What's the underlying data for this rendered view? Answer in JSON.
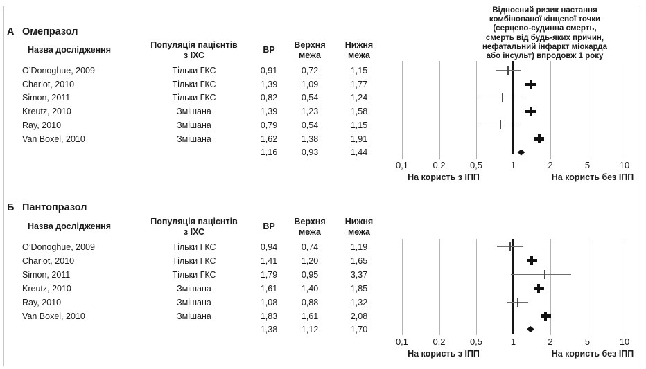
{
  "figure": {
    "plot_title": "Відносний ризик настання\nкомбінованої кінцевої точки\n(серцево-судинна смерть,\nсмерть від будь-яких причин,\nнефатальний інфаркт міокарда\nабо інсульт) впродовж 1 року",
    "axis_ticks": [
      "0,1",
      "0,2",
      "0,5",
      "1",
      "2",
      "5",
      "10"
    ],
    "favors_left": "На користь з ІПП",
    "favors_right": "На користь без ІПП"
  },
  "table_headers": {
    "study": "Назва дослідження",
    "population": "Популяція пацієнтів\nз ІХС",
    "rr": "ВР",
    "upper": "Верхня\nмежа",
    "lower": "Нижня\nмежа"
  },
  "panels": [
    {
      "letter": "А",
      "title": "Омепразол",
      "rows": [
        {
          "study": "O’Donoghue, 2009",
          "population": "Тільки ГКС",
          "rr": "0,91",
          "upper": "0,72",
          "lower": "1,15"
        },
        {
          "study": "Charlot, 2010",
          "population": "Тільки ГКС",
          "rr": "1,39",
          "upper": "1,09",
          "lower": "1,77"
        },
        {
          "study": "Simon, 2011",
          "population": "Тільки ГКС",
          "rr": "0,82",
          "upper": "0,54",
          "lower": "1,24"
        },
        {
          "study": "Kreutz, 2010",
          "population": "Змішана",
          "rr": "1,39",
          "upper": "1,23",
          "lower": "1,58"
        },
        {
          "study": "Ray, 2010",
          "population": "Змішана",
          "rr": "0,79",
          "upper": "0,54",
          "lower": "1,15"
        },
        {
          "study": "Van Boxel, 2010",
          "population": "Змішана",
          "rr": "1,62",
          "upper": "1,38",
          "lower": "1,91"
        }
      ],
      "summary": {
        "rr": "1,16",
        "upper": "0,93",
        "lower": "1,44"
      }
    },
    {
      "letter": "Б",
      "title": "Пантопразол",
      "rows": [
        {
          "study": "O’Donoghue, 2009",
          "population": "Тільки ГКС",
          "rr": "0,94",
          "upper": "0,74",
          "lower": "1,19"
        },
        {
          "study": "Charlot, 2010",
          "population": "Тільки ГКС",
          "rr": "1,41",
          "upper": "1,20",
          "lower": "1,65"
        },
        {
          "study": "Simon, 2011",
          "population": "Тільки ГКС",
          "rr": "1,79",
          "upper": "0,95",
          "lower": "3,37"
        },
        {
          "study": "Kreutz, 2010",
          "population": "Змішана",
          "rr": "1,61",
          "upper": "1,40",
          "lower": "1,85"
        },
        {
          "study": "Ray, 2010",
          "population": "Змішана",
          "rr": "1,08",
          "upper": "0,88",
          "lower": "1,32"
        },
        {
          "study": "Van Boxel, 2010",
          "population": "Змішана",
          "rr": "1,83",
          "upper": "1,61",
          "lower": "2,08"
        }
      ],
      "summary": {
        "rr": "1,38",
        "upper": "1,12",
        "lower": "1,70"
      }
    }
  ],
  "chart_data": [
    {
      "type": "scatter",
      "subtype": "forest-plot",
      "title": "Омепразол",
      "x_scale": "log",
      "x_ticks": [
        0.1,
        0.2,
        0.5,
        1,
        2,
        5,
        10
      ],
      "xlim": [
        0.1,
        10
      ],
      "reference_line": 1,
      "grid": true,
      "points": [
        {
          "label": "O’Donoghue, 2009",
          "rr": 0.91,
          "ci": [
            0.72,
            1.15
          ]
        },
        {
          "label": "Charlot, 2010",
          "rr": 1.39,
          "ci": [
            1.09,
            1.77
          ]
        },
        {
          "label": "Simon, 2011",
          "rr": 0.82,
          "ci": [
            0.54,
            1.24
          ]
        },
        {
          "label": "Kreutz, 2010",
          "rr": 1.39,
          "ci": [
            1.23,
            1.58
          ]
        },
        {
          "label": "Ray, 2010",
          "rr": 0.79,
          "ci": [
            0.54,
            1.15
          ]
        },
        {
          "label": "Van Boxel, 2010",
          "rr": 1.62,
          "ci": [
            1.38,
            1.91
          ]
        }
      ],
      "summary": {
        "rr": 1.16,
        "ci": [
          0.93,
          1.44
        ]
      },
      "xlabel_left": "На користь з ІПП",
      "xlabel_right": "На користь без ІПП"
    },
    {
      "type": "scatter",
      "subtype": "forest-plot",
      "title": "Пантопразол",
      "x_scale": "log",
      "x_ticks": [
        0.1,
        0.2,
        0.5,
        1,
        2,
        5,
        10
      ],
      "xlim": [
        0.1,
        10
      ],
      "reference_line": 1,
      "grid": true,
      "points": [
        {
          "label": "O’Donoghue, 2009",
          "rr": 0.94,
          "ci": [
            0.74,
            1.19
          ]
        },
        {
          "label": "Charlot, 2010",
          "rr": 1.41,
          "ci": [
            1.2,
            1.65
          ]
        },
        {
          "label": "Simon, 2011",
          "rr": 1.79,
          "ci": [
            0.95,
            3.37
          ]
        },
        {
          "label": "Kreutz, 2010",
          "rr": 1.61,
          "ci": [
            1.4,
            1.85
          ]
        },
        {
          "label": "Ray, 2010",
          "rr": 1.08,
          "ci": [
            0.88,
            1.32
          ]
        },
        {
          "label": "Van Boxel, 2010",
          "rr": 1.83,
          "ci": [
            1.61,
            2.08
          ]
        }
      ],
      "summary": {
        "rr": 1.38,
        "ci": [
          1.12,
          1.7
        ]
      },
      "xlabel_left": "На користь з ІПП",
      "xlabel_right": "На користь без ІПП"
    }
  ]
}
